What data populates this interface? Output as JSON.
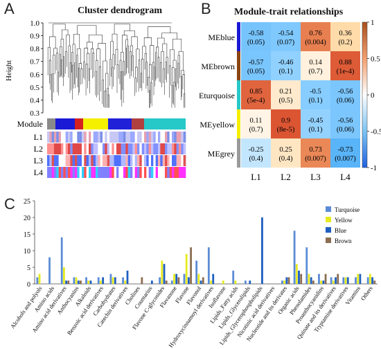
{
  "panels": {
    "A": {
      "letter": "A",
      "title": "Cluster dendrogram",
      "ylabel": "Height",
      "yticks": [
        "1.0",
        "0.9",
        "0.8",
        "0.7",
        "0.6",
        "0.5",
        "0.4",
        "0.3"
      ],
      "row_labels": [
        "Module",
        "L1",
        "L2",
        "L3",
        "L4"
      ],
      "module_colors": [
        "#8a8a8a",
        "#1a1ad6",
        "#d42020",
        "#f5ef00",
        "#2020d8",
        "#b04040",
        "#26c8c8"
      ]
    },
    "B": {
      "letter": "B",
      "title": "Module-trait relationships",
      "columns": [
        "L1",
        "L2",
        "L3",
        "L4"
      ],
      "rows": [
        {
          "name": "MEblue",
          "color": "#1a1ad6",
          "cells": [
            {
              "r": "-0.58",
              "p": "(0.05)",
              "v": -0.58
            },
            {
              "r": "-0.54",
              "p": "(0.07)",
              "v": -0.54
            },
            {
              "r": "0.76",
              "p": "(0.004)",
              "v": 0.76
            },
            {
              "r": "0.36",
              "p": "(0.2)",
              "v": 0.36
            }
          ]
        },
        {
          "name": "MEbrown",
          "color": "#8b4513",
          "cells": [
            {
              "r": "-0.57",
              "p": "(0.05)",
              "v": -0.57
            },
            {
              "r": "-0.46",
              "p": "(0.1)",
              "v": -0.46
            },
            {
              "r": "0.14",
              "p": "(0.7)",
              "v": 0.14
            },
            {
              "r": "0.88",
              "p": "(1e-4)",
              "v": 0.88
            }
          ]
        },
        {
          "name": "MEturquoise",
          "color": "#26c8c8",
          "cells": [
            {
              "r": "0.85",
              "p": "(5e-4)",
              "v": 0.85
            },
            {
              "r": "0.21",
              "p": "(0.5)",
              "v": 0.21
            },
            {
              "r": "-0.5",
              "p": "(0.1)",
              "v": -0.5
            },
            {
              "r": "-0.56",
              "p": "(0.06)",
              "v": -0.56
            }
          ]
        },
        {
          "name": "MEyellow",
          "color": "#f5ef00",
          "cells": [
            {
              "r": "0.11",
              "p": "(0.7)",
              "v": 0.11
            },
            {
              "r": "0.9",
              "p": "(8e-5)",
              "v": 0.9
            },
            {
              "r": "-0.45",
              "p": "(0.1)",
              "v": -0.45
            },
            {
              "r": "-0.56",
              "p": "(0.06)",
              "v": -0.56
            }
          ]
        },
        {
          "name": "MEgrey",
          "color": "#9a9a9a",
          "cells": [
            {
              "r": "-0.25",
              "p": "(0.4)",
              "v": -0.25
            },
            {
              "r": "0.25",
              "p": "(0.4)",
              "v": 0.25
            },
            {
              "r": "0.73",
              "p": "(0.007)",
              "v": 0.73
            },
            {
              "r": "-0.73",
              "p": "(0.007)",
              "v": -0.73
            }
          ]
        }
      ],
      "scale_ticks": [
        "1",
        "0.5",
        "0",
        "-0.5",
        "-1"
      ]
    },
    "C": {
      "letter": "C"
    }
  },
  "chart_data": {
    "type": "bar",
    "ylim": [
      0,
      25
    ],
    "yticks": [
      0,
      5,
      10,
      15,
      20,
      25
    ],
    "grid": false,
    "legend_position": "top-right",
    "categories": [
      "Alcohols and polyols",
      "Amino acids",
      "Amino acid derivatives",
      "Anthocyanins",
      "Alkaloids",
      "Benzoic acid derivatives",
      "Carbohydrates",
      "Catechin derivatives",
      "Cholines",
      "Coumarins",
      "Flavone C-glycosides",
      "Flavanone",
      "Flavone",
      "Flavonol",
      "Hydroxycinnamoyl derivatives",
      "Isoflavone",
      "Lipids_Fatty acids",
      "Lipids_Glycerolipids",
      "Lipids_Glycerophospholipids",
      "Nicotinic acid derivatives",
      "Nucleotide and its derivates",
      "Organic acids",
      "Phenolamides",
      "Proanthocyanidins",
      "Quinate and its derivatives",
      "Tryptamine derivatives",
      "Vitamins",
      "Others"
    ],
    "series": [
      {
        "name": "Turquoise",
        "color": "#5b8bd6",
        "values": [
          2,
          8,
          14,
          2,
          2,
          2,
          3,
          2,
          0,
          0,
          2,
          1,
          3,
          7,
          11,
          0,
          4,
          1,
          0,
          0,
          1,
          16,
          11,
          3,
          2,
          2,
          2,
          2
        ]
      },
      {
        "name": "Yellow",
        "color": "#e6ea1f",
        "values": [
          3,
          0,
          5,
          2,
          1,
          1,
          2,
          1,
          0,
          0,
          7,
          3,
          9,
          3,
          1,
          1,
          1,
          0,
          0,
          0,
          1,
          6,
          3,
          1,
          1,
          2,
          3,
          3
        ]
      },
      {
        "name": "Blue",
        "color": "#1f5fc0",
        "values": [
          0,
          0,
          1,
          1,
          1,
          2,
          2,
          4,
          0,
          1,
          6,
          3,
          2,
          1,
          3,
          0,
          0,
          1,
          20,
          0,
          2,
          4,
          2,
          1,
          2,
          2,
          3,
          2
        ]
      },
      {
        "name": "Brown",
        "color": "#8b6d52",
        "values": [
          0,
          0,
          1,
          1,
          0,
          0,
          0,
          0,
          2,
          0,
          1,
          2,
          11,
          2,
          0,
          0,
          0,
          0,
          0,
          0,
          2,
          3,
          1,
          3,
          3,
          0,
          0,
          1
        ]
      }
    ]
  }
}
